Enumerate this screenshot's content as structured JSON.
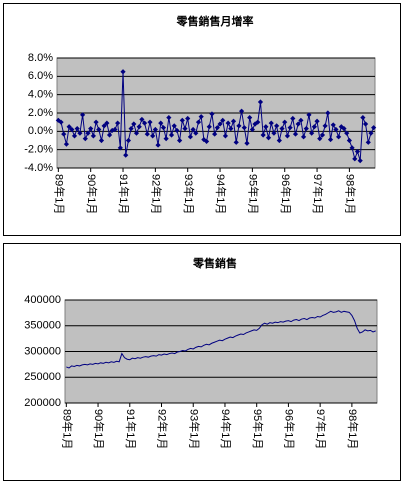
{
  "chart_data": [
    {
      "type": "line",
      "title": "零售銷售月增率",
      "color": "#000080",
      "markers": true,
      "plot_bg": "#c0c0c0",
      "grid": true,
      "categories": [
        "89年1月",
        null,
        null,
        null,
        null,
        null,
        null,
        null,
        null,
        null,
        null,
        null,
        "90年1月",
        null,
        null,
        null,
        null,
        null,
        null,
        null,
        null,
        null,
        null,
        null,
        "91年1月",
        null,
        null,
        null,
        null,
        null,
        null,
        null,
        null,
        null,
        null,
        null,
        "92年1月",
        null,
        null,
        null,
        null,
        null,
        null,
        null,
        null,
        null,
        null,
        null,
        "93年1月",
        null,
        null,
        null,
        null,
        null,
        null,
        null,
        null,
        null,
        null,
        null,
        "94年1月",
        null,
        null,
        null,
        null,
        null,
        null,
        null,
        null,
        null,
        null,
        null,
        "95年1月",
        null,
        null,
        null,
        null,
        null,
        null,
        null,
        null,
        null,
        null,
        null,
        "96年1月",
        null,
        null,
        null,
        null,
        null,
        null,
        null,
        null,
        null,
        null,
        null,
        "97年1月",
        null,
        null,
        null,
        null,
        null,
        null,
        null,
        null,
        null,
        null,
        null,
        "98年1月",
        null,
        null,
        null,
        null,
        null,
        null,
        null,
        null,
        null
      ],
      "values": [
        1.2,
        1.0,
        -0.3,
        -1.4,
        0.5,
        0.2,
        -0.5,
        0.3,
        -0.2,
        1.8,
        -0.8,
        -0.2,
        0.3,
        -0.5,
        1.0,
        0.2,
        -1.0,
        0.6,
        0.9,
        -0.4,
        0.1,
        0.2,
        0.9,
        -1.8,
        6.5,
        -2.6,
        -1.0,
        0.3,
        0.8,
        -0.2,
        0.5,
        1.3,
        0.9,
        -0.3,
        1.0,
        -0.5,
        0.2,
        -1.5,
        0.9,
        0.4,
        -0.8,
        1.5,
        -0.4,
        0.6,
        0.1,
        -1.0,
        1.2,
        0.3,
        1.4,
        -0.6,
        0.2,
        -0.2,
        1.0,
        1.6,
        -0.9,
        -1.1,
        0.5,
        1.9,
        -0.3,
        0.4,
        0.8,
        1.2,
        -0.5,
        0.9,
        0.3,
        1.1,
        -1.2,
        0.6,
        2.2,
        0.4,
        -1.3,
        1.5,
        0.2,
        0.8,
        1.0,
        3.2,
        -0.4,
        0.5,
        -0.7,
        0.9,
        -0.2,
        0.6,
        -1.0,
        0.3,
        1.0,
        -0.5,
        0.4,
        1.4,
        -0.3,
        0.8,
        1.2,
        -0.6,
        0.3,
        1.8,
        -0.2,
        0.5,
        1.1,
        -0.8,
        -0.4,
        0.6,
        2.0,
        -0.9,
        0.7,
        0.2,
        -0.6,
        0.5,
        0.3,
        -0.2,
        -1.0,
        -1.8,
        -3.0,
        -2.2,
        -3.2,
        1.5,
        0.8,
        -1.2,
        -0.2,
        0.4
      ],
      "ylim": [
        -4,
        8
      ],
      "yticks": [
        {
          "value": 8,
          "label": "8.0%"
        },
        {
          "value": 6,
          "label": "6.0%"
        },
        {
          "value": 4,
          "label": "4.0%"
        },
        {
          "value": 2,
          "label": "2.0%"
        },
        {
          "value": 0,
          "label": "0.0%"
        },
        {
          "value": -2,
          "label": "-2.0%"
        },
        {
          "value": -4,
          "label": "-4.0%"
        }
      ]
    },
    {
      "type": "line",
      "title": "零售銷售",
      "color": "#000080",
      "markers": false,
      "plot_bg": "#c0c0c0",
      "grid": true,
      "categories": [
        "89年1月",
        null,
        null,
        null,
        null,
        null,
        null,
        null,
        null,
        null,
        null,
        null,
        "90年1月",
        null,
        null,
        null,
        null,
        null,
        null,
        null,
        null,
        null,
        null,
        null,
        "91年1月",
        null,
        null,
        null,
        null,
        null,
        null,
        null,
        null,
        null,
        null,
        null,
        "92年1月",
        null,
        null,
        null,
        null,
        null,
        null,
        null,
        null,
        null,
        null,
        null,
        "93年1月",
        null,
        null,
        null,
        null,
        null,
        null,
        null,
        null,
        null,
        null,
        null,
        "94年1月",
        null,
        null,
        null,
        null,
        null,
        null,
        null,
        null,
        null,
        null,
        null,
        "95年1月",
        null,
        null,
        null,
        null,
        null,
        null,
        null,
        null,
        null,
        null,
        null,
        "96年1月",
        null,
        null,
        null,
        null,
        null,
        null,
        null,
        null,
        null,
        null,
        null,
        "97年1月",
        null,
        null,
        null,
        null,
        null,
        null,
        null,
        null,
        null,
        null,
        null,
        "98年1月",
        null,
        null,
        null,
        null,
        null,
        null,
        null,
        null,
        null
      ],
      "values": [
        270000,
        268000,
        272000,
        271000,
        273000,
        272000,
        274000,
        275000,
        274000,
        276000,
        275000,
        277000,
        276000,
        278000,
        277000,
        279000,
        278000,
        280000,
        279000,
        281000,
        280000,
        296000,
        288000,
        285000,
        284000,
        287000,
        286000,
        288000,
        287000,
        289000,
        290000,
        289000,
        291000,
        292000,
        291000,
        294000,
        293000,
        295000,
        294000,
        296000,
        297000,
        296000,
        299000,
        300000,
        302000,
        301000,
        304000,
        306000,
        305000,
        308000,
        310000,
        309000,
        312000,
        314000,
        313000,
        316000,
        318000,
        320000,
        322000,
        321000,
        324000,
        326000,
        328000,
        327000,
        330000,
        332000,
        334000,
        333000,
        336000,
        338000,
        340000,
        342000,
        341000,
        345000,
        352000,
        355000,
        353000,
        356000,
        355000,
        357000,
        356000,
        358000,
        357000,
        359000,
        360000,
        358000,
        361000,
        362000,
        360000,
        363000,
        364000,
        362000,
        365000,
        366000,
        365000,
        368000,
        367000,
        370000,
        372000,
        375000,
        378000,
        376000,
        377000,
        379000,
        376000,
        378000,
        377000,
        376000,
        370000,
        360000,
        345000,
        336000,
        338000,
        342000,
        340000,
        341000,
        338000,
        340000
      ],
      "ylim": [
        200000,
        400000
      ],
      "yticks": [
        400000,
        350000,
        300000,
        250000,
        200000
      ]
    }
  ]
}
